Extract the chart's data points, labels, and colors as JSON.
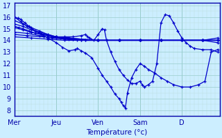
{
  "xlabel": "Température (°c)",
  "bg_color": "#cceeff",
  "grid_major_color": "#99cccc",
  "grid_minor_color": "#bbdddd",
  "line_color": "#0000cc",
  "marker": "+",
  "ylim": [
    7.5,
    17.2
  ],
  "yticks": [
    8,
    9,
    10,
    11,
    12,
    13,
    14,
    15,
    16,
    17
  ],
  "day_labels": [
    "Mer",
    "Jeu",
    "Ven",
    "Sam",
    "D"
  ],
  "day_positions": [
    0,
    1,
    2,
    3,
    4
  ],
  "xlim": [
    0,
    4.9
  ],
  "series": [
    [
      0.0,
      16.0,
      0.08,
      15.9,
      0.15,
      15.8,
      0.25,
      15.5,
      0.35,
      15.2,
      0.5,
      14.8,
      0.65,
      14.5,
      0.8,
      14.2,
      1.0,
      13.8,
      1.15,
      13.4,
      1.3,
      13.1,
      1.45,
      13.2,
      1.5,
      13.3,
      1.6,
      13.1,
      1.7,
      12.9,
      1.85,
      12.5,
      2.0,
      11.6,
      2.1,
      11.0,
      2.2,
      10.5,
      2.3,
      10.0,
      2.4,
      9.4,
      2.5,
      9.0,
      2.55,
      8.7,
      2.6,
      8.4,
      2.65,
      8.2,
      2.7,
      9.5,
      2.8,
      10.8,
      2.9,
      11.5,
      3.0,
      12.0,
      3.1,
      11.8,
      3.2,
      11.5,
      3.35,
      11.2,
      3.5,
      10.8,
      3.65,
      10.5,
      3.8,
      10.2,
      4.0,
      10.0,
      4.2,
      10.0,
      4.4,
      10.2,
      4.55,
      10.5,
      4.7,
      13.0,
      4.85,
      13.2
    ],
    [
      0.0,
      16.0,
      0.15,
      15.6,
      0.3,
      15.2,
      0.5,
      14.8,
      0.7,
      14.5,
      1.0,
      14.3,
      1.3,
      14.2,
      1.6,
      14.1,
      2.0,
      14.0,
      2.5,
      14.0,
      3.0,
      14.0,
      3.5,
      14.0,
      4.0,
      14.0,
      4.5,
      14.0,
      4.85,
      14.2
    ],
    [
      0.0,
      15.7,
      0.2,
      15.4,
      0.4,
      15.1,
      0.6,
      14.8,
      0.8,
      14.5,
      1.0,
      14.3,
      1.3,
      14.2,
      1.6,
      14.1,
      2.0,
      14.0,
      2.5,
      14.0,
      3.0,
      14.0,
      3.5,
      14.0,
      4.0,
      14.0,
      4.5,
      14.0,
      4.85,
      14.0
    ],
    [
      0.0,
      15.4,
      0.2,
      15.2,
      0.4,
      14.9,
      0.6,
      14.7,
      0.8,
      14.5,
      1.0,
      14.3,
      1.3,
      14.1,
      1.6,
      14.0,
      2.0,
      14.0,
      2.5,
      14.0,
      3.0,
      14.0,
      3.5,
      14.0,
      4.0,
      14.0,
      4.5,
      14.0,
      4.85,
      14.0
    ],
    [
      0.0,
      15.1,
      0.2,
      14.9,
      0.4,
      14.7,
      0.7,
      14.5,
      0.9,
      14.3,
      1.1,
      14.2,
      1.4,
      14.1,
      1.7,
      14.0,
      2.0,
      14.0,
      2.5,
      14.0,
      3.0,
      14.0,
      3.5,
      14.0,
      4.0,
      14.0,
      4.5,
      14.0,
      4.85,
      14.0
    ],
    [
      0.0,
      14.7,
      0.3,
      14.6,
      0.6,
      14.4,
      0.9,
      14.2,
      1.2,
      14.1,
      1.5,
      14.0,
      2.0,
      14.0,
      2.5,
      14.0,
      3.0,
      14.0,
      3.5,
      14.0,
      4.0,
      14.0,
      4.5,
      14.0,
      4.85,
      14.0
    ],
    [
      0.0,
      14.5,
      0.3,
      14.4,
      0.7,
      14.3,
      1.0,
      14.2,
      1.4,
      14.1,
      1.7,
      14.0,
      2.0,
      14.0,
      2.5,
      14.0,
      3.0,
      14.0,
      3.5,
      14.0,
      4.0,
      14.0,
      4.5,
      14.0,
      4.85,
      14.0
    ],
    [
      0.0,
      14.3,
      0.4,
      14.2,
      0.8,
      14.1,
      1.2,
      14.0,
      1.6,
      14.0,
      2.0,
      14.0,
      2.5,
      14.0,
      3.0,
      14.0,
      3.5,
      14.0,
      4.0,
      14.0,
      4.5,
      14.0,
      4.85,
      13.8
    ],
    [
      0.0,
      15.2,
      0.1,
      15.1,
      0.2,
      15.0,
      0.35,
      14.8,
      0.5,
      14.6,
      0.65,
      14.5,
      0.8,
      14.4,
      1.0,
      14.3,
      1.2,
      14.3,
      1.4,
      14.3,
      1.6,
      14.4,
      1.7,
      14.5,
      1.75,
      14.3,
      1.8,
      14.2,
      1.9,
      14.0,
      2.0,
      14.5,
      2.1,
      15.0,
      2.15,
      14.9,
      2.2,
      14.0,
      2.3,
      13.0,
      2.4,
      12.2,
      2.5,
      11.5,
      2.6,
      11.0,
      2.7,
      10.6,
      2.8,
      10.3,
      2.9,
      10.3,
      3.0,
      10.5,
      3.05,
      10.2,
      3.1,
      10.0,
      3.2,
      10.2,
      3.3,
      10.5,
      3.4,
      12.0,
      3.5,
      15.5,
      3.6,
      16.2,
      3.7,
      16.1,
      3.8,
      15.5,
      3.9,
      14.8,
      4.0,
      14.2,
      4.1,
      13.8,
      4.2,
      13.5,
      4.3,
      13.3,
      4.5,
      13.2,
      4.7,
      13.2,
      4.85,
      13.0
    ]
  ]
}
